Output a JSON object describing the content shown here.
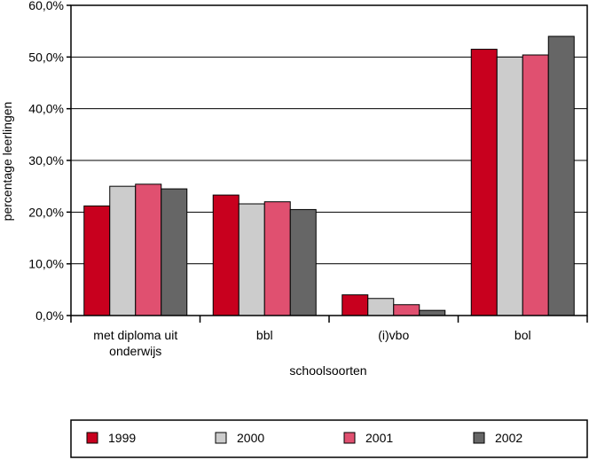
{
  "chart_data": {
    "type": "bar",
    "title": "",
    "xlabel": "schoolsoorten",
    "ylabel": "percentage leerlingen",
    "ylim": [
      0,
      60
    ],
    "yticks": [
      "0,0%",
      "10,0%",
      "20,0%",
      "30,0%",
      "40,0%",
      "50,0%",
      "60,0%"
    ],
    "categories": [
      {
        "line1": "met diploma uit",
        "line2": "onderwijs"
      },
      {
        "line1": "bbl",
        "line2": ""
      },
      {
        "line1": "(i)vbo",
        "line2": ""
      },
      {
        "line1": "bol",
        "line2": ""
      }
    ],
    "series": [
      {
        "name": "1999",
        "color": "#c8001e",
        "values": [
          21.2,
          23.3,
          4.0,
          51.5
        ]
      },
      {
        "name": "2000",
        "color": "#cccccc",
        "values": [
          25.0,
          21.6,
          3.3,
          50.0
        ]
      },
      {
        "name": "2001",
        "color": "#e05070",
        "values": [
          25.4,
          22.0,
          2.1,
          50.4
        ]
      },
      {
        "name": "2002",
        "color": "#666666",
        "values": [
          24.5,
          20.5,
          1.0,
          54.0
        ]
      }
    ],
    "grid": true,
    "legend_position": "bottom"
  }
}
